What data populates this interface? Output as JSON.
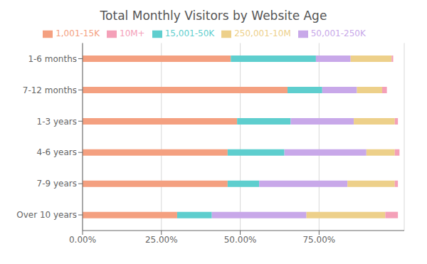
{
  "chart_data": {
    "type": "bar",
    "title": "Total Monthly Visitors by Website Age",
    "orientation": "horizontal",
    "stacked": true,
    "categories": [
      "1-6 months",
      "7-12 months",
      "1-3 years",
      "4-6 years",
      "7-9 years",
      "Over 10 years"
    ],
    "series": [
      {
        "name": "1,001-15K",
        "color": "#F4A080",
        "values": [
          0.47,
          0.65,
          0.49,
          0.46,
          0.46,
          0.3
        ]
      },
      {
        "name": "15,001-50K",
        "color": "#5ECECE",
        "values": [
          0.27,
          0.11,
          0.17,
          0.18,
          0.1,
          0.11
        ]
      },
      {
        "name": "50,001-250K",
        "color": "#C8A8E9",
        "values": [
          0.11,
          0.11,
          0.2,
          0.26,
          0.28,
          0.3
        ]
      },
      {
        "name": "250,001-10M",
        "color": "#EDD08A",
        "values": [
          0.13,
          0.08,
          0.13,
          0.09,
          0.15,
          0.25
        ]
      },
      {
        "name": "10M+",
        "color": "#F4A0B8",
        "values": [
          0.005,
          0.015,
          0.01,
          0.015,
          0.01,
          0.04
        ]
      }
    ],
    "xlim": [
      0,
      1.02
    ],
    "xticks": [
      {
        "value": 0.0,
        "label": "0.00%"
      },
      {
        "value": 0.25,
        "label": "25.00%"
      },
      {
        "value": 0.5,
        "label": "50.00%"
      },
      {
        "value": 0.75,
        "label": "75.00%"
      }
    ],
    "grid": true,
    "legend": "top"
  }
}
